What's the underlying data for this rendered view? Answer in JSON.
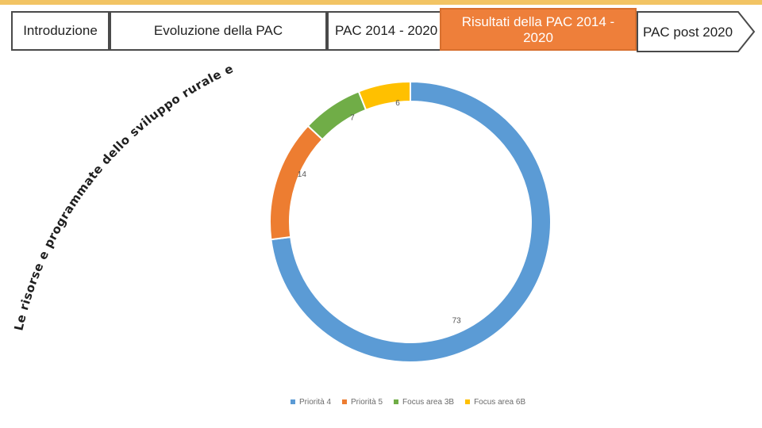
{
  "nav": {
    "tabs": [
      {
        "label": "Introduzione"
      },
      {
        "label": "Evoluzione della PAC"
      },
      {
        "label": "PAC 2014 - 2020"
      },
      {
        "label": "Risultati della PAC 2014 - 2020",
        "line1": "Risultati della PAC 2014 -",
        "line2": "2020"
      },
      {
        "label": "PAC post 2020"
      }
    ]
  },
  "slide": {
    "arc_title": "Le risorse e programmate dello sviluppo rurale e la sfida climatica"
  },
  "colors": {
    "strip": "#f2c464",
    "active_tab": "#ee7f3a"
  },
  "chart_data": {
    "type": "pie",
    "variant": "donut",
    "categories": [
      "Priorità 4",
      "Priorità 5",
      "Focus area 3B",
      "Focus area 6B"
    ],
    "values": [
      73,
      14,
      7,
      6
    ],
    "data_labels": [
      "73",
      "14",
      "7",
      "6"
    ],
    "colors": [
      "#5b9bd5",
      "#ed7d31",
      "#70ad47",
      "#ffc000"
    ],
    "legend": "bottom"
  }
}
